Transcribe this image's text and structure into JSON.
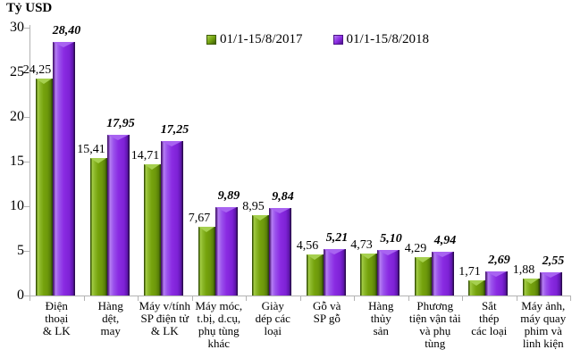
{
  "title": "Tỷ USD",
  "legend": {
    "items": [
      {
        "label": "01/1-15/8/2017",
        "color": "#76a30d"
      },
      {
        "label": "01/1-15/8/2018",
        "color": "#8a2be2"
      }
    ]
  },
  "chart_data": {
    "type": "bar",
    "title": "Tỷ USD",
    "xlabel": "",
    "ylabel": "Tỷ USD",
    "ylim": [
      0,
      30
    ],
    "yticks": [
      0,
      5,
      10,
      15,
      20,
      25,
      30
    ],
    "grid": false,
    "legend_position": "top-center",
    "categories": [
      "Điện thoại & LK",
      "Hàng dệt, may",
      "Máy v/tính SP điện tử & LK",
      "Máy móc, t.bị, d.cụ, phụ tùng khác",
      "Giày dép các loại",
      "Gỗ và SP gỗ",
      "Hàng thủy sản",
      "Phương tiện vận tải và phụ tùng",
      "Sắt thép các loại",
      "Máy ảnh, máy quay phim và linh kiện"
    ],
    "categories_display": [
      "Điện\nthoại\n& LK",
      "Hàng\ndệt,\nmay",
      "Máy v/tính\nSP điện tử\n& LK",
      "Máy móc,\nt.bị, d.cụ,\nphụ tùng\nkhác",
      "Giày\ndép các\nloại",
      "Gỗ và\nSP gỗ",
      "Hàng\nthủy\nsản",
      "Phương\ntiện vận tải\nvà phụ\ntùng",
      "Sắt\nthép\ncác loại",
      "Máy ảnh,\nmáy quay\nphim và\nlinh kiện"
    ],
    "series": [
      {
        "name": "01/1-15/8/2017",
        "color": "#76a30d",
        "values": [
          24.25,
          15.41,
          14.71,
          7.67,
          8.95,
          4.56,
          4.73,
          4.29,
          1.71,
          1.88
        ],
        "labels": [
          "24,25",
          "15,41",
          "14,71",
          "7,67",
          "8,95",
          "4,56",
          "4,73",
          "4,29",
          "1,71",
          "1,88"
        ]
      },
      {
        "name": "01/1-15/8/2018",
        "color": "#8a2be2",
        "values": [
          28.4,
          17.95,
          17.25,
          9.89,
          9.84,
          5.21,
          5.1,
          4.94,
          2.69,
          2.55
        ],
        "labels": [
          "28,40",
          "17,95",
          "17,25",
          "9,89",
          "9,84",
          "5,21",
          "5,10",
          "4,94",
          "2,69",
          "2,55"
        ]
      }
    ]
  }
}
